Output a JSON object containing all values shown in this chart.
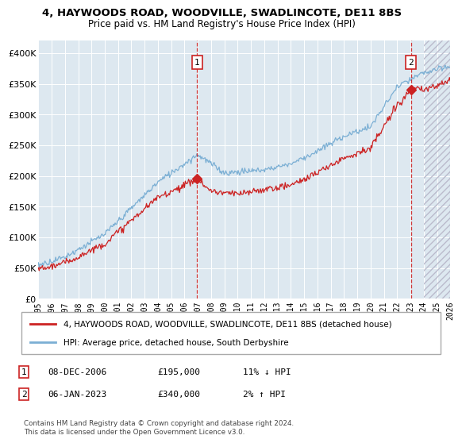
{
  "title": "4, HAYWOODS ROAD, WOODVILLE, SWADLINCOTE, DE11 8BS",
  "subtitle": "Price paid vs. HM Land Registry's House Price Index (HPI)",
  "ylim": [
    0,
    420000
  ],
  "yticks": [
    0,
    50000,
    100000,
    150000,
    200000,
    250000,
    300000,
    350000,
    400000
  ],
  "ytick_labels": [
    "£0",
    "£50K",
    "£100K",
    "£150K",
    "£200K",
    "£250K",
    "£300K",
    "£350K",
    "£400K"
  ],
  "hpi_color": "#7bafd4",
  "price_color": "#cc2222",
  "vline_color": "#cc2222",
  "background_color": "#dde8f0",
  "purchase1_price": 195000,
  "purchase1_date": "08-DEC-2006",
  "purchase1_hpi_rel": "11% ↓ HPI",
  "purchase2_price": 340000,
  "purchase2_date": "06-JAN-2023",
  "purchase2_hpi_rel": "2% ↑ HPI",
  "legend_line1": "4, HAYWOODS ROAD, WOODVILLE, SWADLINCOTE, DE11 8BS (detached house)",
  "legend_line2": "HPI: Average price, detached house, South Derbyshire",
  "footnote": "Contains HM Land Registry data © Crown copyright and database right 2024.\nThis data is licensed under the Open Government Licence v3.0.",
  "hatch_start": 2024.0,
  "xlim_start": 1995,
  "xlim_end": 2026
}
